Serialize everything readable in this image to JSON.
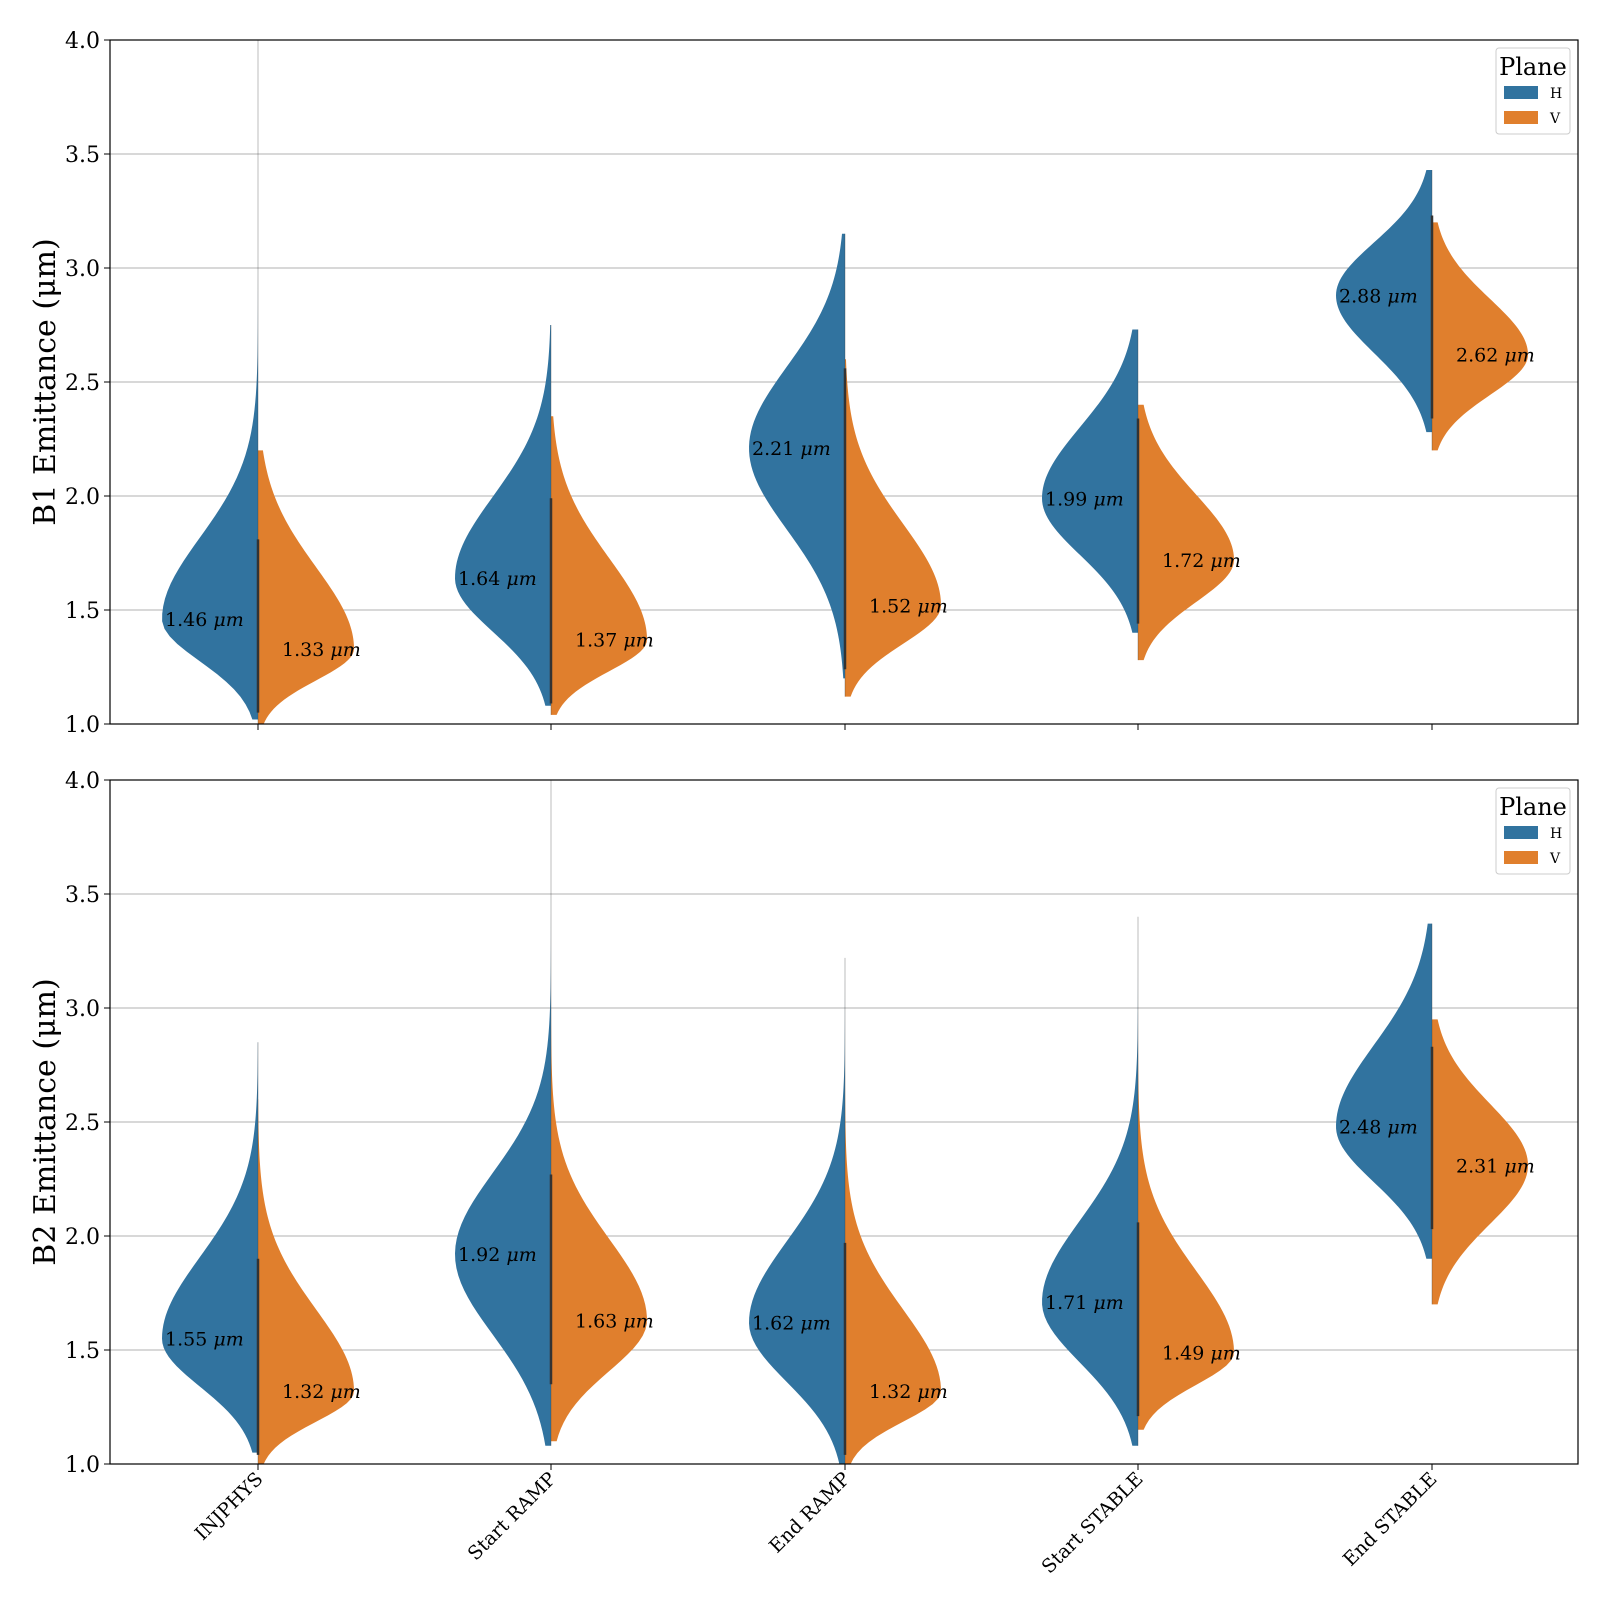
{
  "colors": {
    "H": "#31739f",
    "V": "#e07f2d"
  },
  "chart_data": [
    {
      "type": "violin",
      "ylabel": "B1 Emittance (μm)",
      "ylim": [
        1.0,
        4.0
      ],
      "yticks": [
        "1.0",
        "1.5",
        "2.0",
        "2.5",
        "3.0",
        "3.5",
        "4.0"
      ],
      "grid": "horizontal",
      "legend": {
        "title": "Plane",
        "entries": [
          "H",
          "V"
        ],
        "placement": "top-right"
      },
      "categories": [
        "INJPHYS",
        "Start RAMP",
        "End RAMP",
        "Start STABLE",
        "End STABLE"
      ],
      "series": [
        {
          "name": "H",
          "medians": [
            1.46,
            1.64,
            2.21,
            1.99,
            2.88
          ],
          "min": [
            1.02,
            1.08,
            1.2,
            1.4,
            2.28
          ],
          "max": [
            4.0,
            2.75,
            3.15,
            2.73,
            3.43
          ]
        },
        {
          "name": "V",
          "medians": [
            1.33,
            1.37,
            1.52,
            1.72,
            2.62
          ],
          "min": [
            1.0,
            1.04,
            1.12,
            1.28,
            2.2
          ],
          "max": [
            2.2,
            2.35,
            2.6,
            2.4,
            3.2
          ]
        }
      ],
      "annotations": [
        {
          "value": "1.46",
          "unit": "μm"
        },
        {
          "value": "1.33",
          "unit": "μm"
        },
        {
          "value": "1.64",
          "unit": "μm"
        },
        {
          "value": "1.37",
          "unit": "μm"
        },
        {
          "value": "2.21",
          "unit": "μm"
        },
        {
          "value": "1.52",
          "unit": "μm"
        },
        {
          "value": "1.99",
          "unit": "μm"
        },
        {
          "value": "1.72",
          "unit": "μm"
        },
        {
          "value": "2.88",
          "unit": "μm"
        },
        {
          "value": "2.62",
          "unit": "μm"
        }
      ]
    },
    {
      "type": "violin",
      "ylabel": "B2 Emittance (μm)",
      "ylim": [
        1.0,
        4.0
      ],
      "yticks": [
        "1.0",
        "1.5",
        "2.0",
        "2.5",
        "3.0",
        "3.5",
        "4.0"
      ],
      "grid": "horizontal",
      "legend": {
        "title": "Plane",
        "entries": [
          "H",
          "V"
        ],
        "placement": "top-right"
      },
      "categories": [
        "INJPHYS",
        "Start RAMP",
        "End RAMP",
        "Start STABLE",
        "End STABLE"
      ],
      "series": [
        {
          "name": "H",
          "medians": [
            1.55,
            1.92,
            1.62,
            1.71,
            2.48
          ],
          "min": [
            1.05,
            1.08,
            1.0,
            1.08,
            1.9
          ],
          "max": [
            2.85,
            4.0,
            3.22,
            3.4,
            3.37
          ]
        },
        {
          "name": "V",
          "medians": [
            1.32,
            1.63,
            1.32,
            1.49,
            2.31
          ],
          "min": [
            1.0,
            1.1,
            1.0,
            1.15,
            1.7
          ],
          "max": [
            2.6,
            3.55,
            3.15,
            3.1,
            2.95
          ]
        }
      ],
      "annotations": [
        {
          "value": "1.55",
          "unit": "μm"
        },
        {
          "value": "1.32",
          "unit": "μm"
        },
        {
          "value": "1.92",
          "unit": "μm"
        },
        {
          "value": "1.63",
          "unit": "μm"
        },
        {
          "value": "1.62",
          "unit": "μm"
        },
        {
          "value": "1.32",
          "unit": "μm"
        },
        {
          "value": "1.71",
          "unit": "μm"
        },
        {
          "value": "1.49",
          "unit": "μm"
        },
        {
          "value": "2.48",
          "unit": "μm"
        },
        {
          "value": "2.31",
          "unit": "μm"
        }
      ]
    }
  ]
}
